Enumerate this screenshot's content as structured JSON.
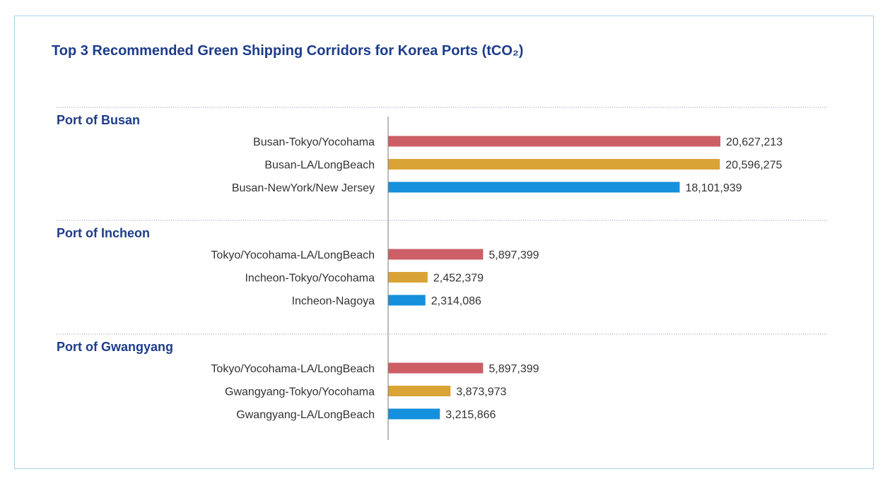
{
  "chart_data": {
    "type": "bar",
    "orientation": "horizontal",
    "title": "Top 3 Recommended Green Shipping Corridors for Korea Ports (tCO₂)",
    "groups": [
      {
        "name": "Port of Busan",
        "items": [
          {
            "label": "Busan-Tokyo/Yocohama",
            "value": 20627213,
            "value_label": "20,627,213",
            "color": "#cc5e66"
          },
          {
            "label": "Busan-LA/LongBeach",
            "value": 20596275,
            "value_label": "20,596,275",
            "color": "#daa335"
          },
          {
            "label": "Busan-NewYork/New Jersey",
            "value": 18101939,
            "value_label": "18,101,939",
            "color": "#1590dd"
          }
        ]
      },
      {
        "name": "Port of Incheon",
        "items": [
          {
            "label": "Tokyo/Yocohama-LA/LongBeach",
            "value": 5897399,
            "value_label": "5,897,399",
            "color": "#cc5e66"
          },
          {
            "label": "Incheon-Tokyo/Yocohama",
            "value": 2452379,
            "value_label": "2,452,379",
            "color": "#daa335"
          },
          {
            "label": "Incheon-Nagoya",
            "value": 2314086,
            "value_label": "2,314,086",
            "color": "#1590dd"
          }
        ]
      },
      {
        "name": "Port of Gwangyang",
        "items": [
          {
            "label": "Tokyo/Yocohama-LA/LongBeach",
            "value": 5897399,
            "value_label": "5,897,399",
            "color": "#cc5e66"
          },
          {
            "label": "Gwangyang-Tokyo/Yocohama",
            "value": 3873973,
            "value_label": "3,873,973",
            "color": "#daa335"
          },
          {
            "label": "Gwangyang-LA/LongBeach",
            "value": 3215866,
            "value_label": "3,215,866",
            "color": "#1590dd"
          }
        ]
      }
    ],
    "xlim": [
      0,
      20627213
    ],
    "grid": false,
    "legend": "none"
  }
}
